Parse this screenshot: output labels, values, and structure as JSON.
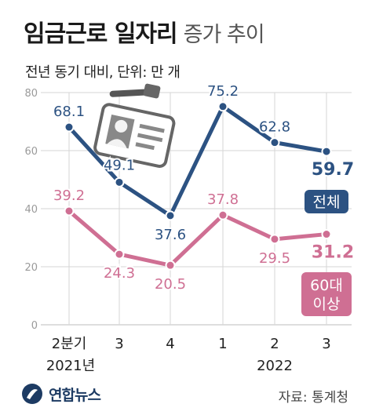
{
  "title": {
    "main": "임금근로 일자리",
    "sub": "증가 추이"
  },
  "subtitle": "전년 동기 대비, 단위: 만 개",
  "footer": {
    "logo": "연합뉴스",
    "source": "자료: 통계청"
  },
  "colors": {
    "total": "#2c5282",
    "sixty_plus": "#cf6f93",
    "grid": "#d6d6d6",
    "axis_text": "#9a9a9a",
    "logo": "#1d3b63"
  },
  "icons": [
    "id-badge-icon",
    "yonhap-logo-icon"
  ],
  "chart_data": {
    "type": "line",
    "title": "임금근로 일자리 증가 추이",
    "subtitle": "전년 동기 대비, 단위: 만 개",
    "categories": [
      "2분기",
      "3",
      "4",
      "1",
      "2",
      "3"
    ],
    "category_groups": [
      {
        "label": "2021년",
        "start": 0,
        "end": 2
      },
      {
        "label": "2022",
        "start": 3,
        "end": 5
      }
    ],
    "yticks": [
      0,
      20,
      40,
      60,
      80
    ],
    "ylim": [
      0,
      80
    ],
    "grid": true,
    "series": [
      {
        "name": "전체",
        "key": "total",
        "values": [
          68.1,
          49.1,
          37.6,
          75.2,
          62.8,
          59.7
        ],
        "labels": [
          "68.1",
          "49.1",
          "37.6",
          "75.2",
          "62.8",
          "59.7"
        ]
      },
      {
        "name": "60대 이상",
        "name_lines": [
          "60대",
          "이상"
        ],
        "key": "sixty_plus",
        "values": [
          39.2,
          24.3,
          20.5,
          37.8,
          29.5,
          31.2
        ],
        "labels": [
          "39.2",
          "24.3",
          "20.5",
          "37.8",
          "29.5",
          "31.2"
        ]
      }
    ]
  }
}
